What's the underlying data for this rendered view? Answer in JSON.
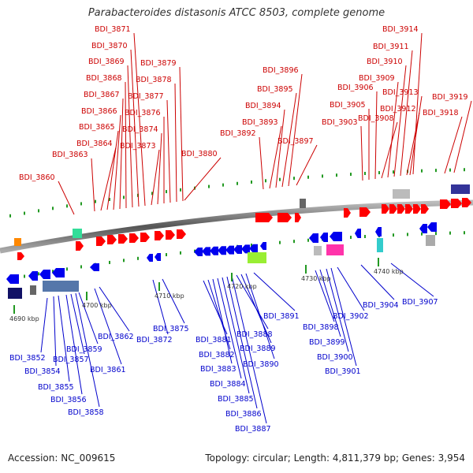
{
  "title": "Parabacteroides distasonis ATCC 8503, complete genome",
  "accession": "Accession: NC_009615",
  "topology": "Topology: circular; Length: 4,811,379 bp; Genes: 3,954",
  "scale_labels": [
    "4690 kbp",
    "4700 kbp",
    "4710 kbp",
    "4720 kbp",
    "4730 kbp",
    "4740 kbp"
  ],
  "top_genes": [
    "BDI_3860",
    "BDI_3863",
    "BDI_3864",
    "BDI_3865",
    "BDI_3866",
    "BDI_3867",
    "BDI_3868",
    "BDI_3869",
    "BDI_3870",
    "BDI_3871",
    "BDI_3873",
    "BDI_3874",
    "BDI_3876",
    "BDI_3877",
    "BDI_3878",
    "BDI_3879",
    "BDI_3880",
    "BDI_3892",
    "BDI_3893",
    "BDI_3894",
    "BDI_3895",
    "BDI_3896",
    "BDI_3897",
    "BDI_3903",
    "BDI_3905",
    "BDI_3906",
    "BDI_3908",
    "BDI_3909",
    "BDI_3910",
    "BDI_3911",
    "BDI_3912",
    "BDI_3913",
    "BDI_3914",
    "BDI_3918",
    "BDI_3919"
  ],
  "bottom_genes": [
    "BDI_3852",
    "BDI_3854",
    "BDI_3855",
    "BDI_3856",
    "BDI_3857",
    "BDI_3858",
    "BDI_3859",
    "BDI_3861",
    "BDI_3862",
    "BDI_3872",
    "BDI_3875",
    "BDI_3881",
    "BDI_3882",
    "BDI_3883",
    "BDI_3884",
    "BDI_3885",
    "BDI_3886",
    "BDI_3887",
    "BDI_3888",
    "BDI_3889",
    "BDI_3890",
    "BDI_3891",
    "BDI_3898",
    "BDI_3899",
    "BDI_3900",
    "BDI_3901",
    "BDI_3902",
    "BDI_3904",
    "BDI_3907"
  ],
  "colors": {
    "forward": "#ff0000",
    "reverse": "#0000ee",
    "backbone": "#888888",
    "tick": "#229922",
    "label_top": "#cc0000",
    "label_bottom": "#0000cc"
  }
}
